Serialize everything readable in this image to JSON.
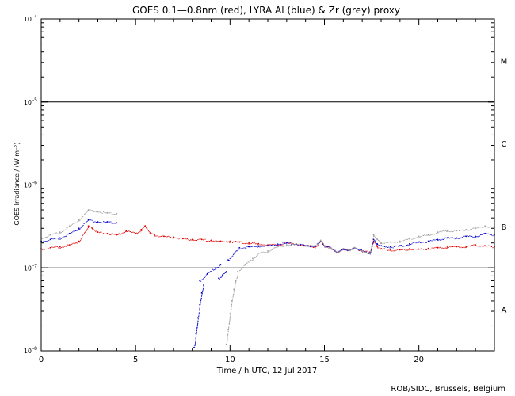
{
  "chart_data": {
    "type": "line",
    "title": "GOES 0.1—0.8nm (red), LYRA Al (blue) & Zr (grey) proxy",
    "xlabel": "Time / h UTC, 12 Jul 2017",
    "ylabel": "GOES Irradiance / (W m⁻²)",
    "credit": "ROB/SIDC, Brussels, Belgium",
    "xlim": [
      0,
      24
    ],
    "ylim": [
      1e-08,
      0.0001
    ],
    "yscale": "log",
    "x_ticks": [
      0,
      5,
      10,
      15,
      20
    ],
    "y_tick_labels": [
      {
        "value": 1e-08,
        "base": "10",
        "exp": "-8"
      },
      {
        "value": 1e-07,
        "base": "10",
        "exp": "-7"
      },
      {
        "value": 1e-06,
        "base": "10",
        "exp": "-6"
      },
      {
        "value": 1e-05,
        "base": "10",
        "exp": "-5"
      },
      {
        "value": 0.0001,
        "base": "10",
        "exp": "-4"
      }
    ],
    "class_lines": [
      1e-07,
      1e-06,
      1e-05
    ],
    "class_labels": [
      {
        "label": "A",
        "value": 3.16e-08
      },
      {
        "label": "B",
        "value": 3.16e-07
      },
      {
        "label": "C",
        "value": 3.16e-06
      },
      {
        "label": "M",
        "value": 3.16e-05
      }
    ],
    "colors": {
      "red": "#e00000",
      "blue": "#0000c8",
      "grey": "#a0a0a0"
    },
    "series": [
      {
        "color": "red",
        "x": [
          0,
          0.5,
          1,
          1.5,
          2,
          2.5,
          2.7,
          3,
          3.5,
          4,
          4.5,
          5,
          5.3,
          5.5,
          5.8,
          6,
          6.5,
          7,
          7.5,
          8,
          8.5,
          9,
          9.5,
          10,
          10.5,
          11,
          11.5,
          12,
          12.5,
          13,
          13.5,
          14,
          14.5,
          14.8,
          15,
          15.3,
          15.7,
          16,
          16.3,
          16.6,
          17,
          17.4,
          17.6,
          17.8,
          18,
          18.5,
          19,
          19.5,
          20,
          20.5,
          21,
          21.5,
          22,
          22.5,
          23,
          23.5,
          24
        ],
        "y": [
          1.7e-07,
          1.75e-07,
          1.8e-07,
          1.9e-07,
          2.1e-07,
          3.2e-07,
          3e-07,
          2.7e-07,
          2.6e-07,
          2.5e-07,
          2.8e-07,
          2.6e-07,
          2.9e-07,
          3.2e-07,
          2.6e-07,
          2.5e-07,
          2.4e-07,
          2.35e-07,
          2.25e-07,
          2.2e-07,
          2.2e-07,
          2.15e-07,
          2.1e-07,
          2.1e-07,
          2.05e-07,
          2e-07,
          1.95e-07,
          1.9e-07,
          1.9e-07,
          2e-07,
          1.95e-07,
          1.85e-07,
          1.8e-07,
          2.1e-07,
          1.85e-07,
          1.75e-07,
          1.55e-07,
          1.7e-07,
          1.65e-07,
          1.75e-07,
          1.6e-07,
          1.55e-07,
          2.1e-07,
          1.8e-07,
          1.7e-07,
          1.65e-07,
          1.65e-07,
          1.7e-07,
          1.68e-07,
          1.72e-07,
          1.75e-07,
          1.78e-07,
          1.8e-07,
          1.8e-07,
          1.9e-07,
          1.85e-07,
          1.8e-07
        ]
      },
      {
        "color": "blue",
        "x": [
          0,
          0.5,
          1,
          1.5,
          2,
          2.5,
          3,
          3.5,
          4
        ],
        "y": [
          2.1e-07,
          2.2e-07,
          2.3e-07,
          2.6e-07,
          3e-07,
          3.8e-07,
          3.6e-07,
          3.6e-07,
          3.5e-07
        ]
      },
      {
        "color": "blue",
        "x": [
          8.1,
          8.2,
          8.3,
          8.4,
          8.5,
          8.6
        ],
        "y": [
          1.1e-08,
          1.6e-08,
          2.5e-08,
          3.6e-08,
          5e-08,
          6.2e-08
        ]
      },
      {
        "color": "blue",
        "x": [
          8.4,
          8.8,
          9.2,
          9.5
        ],
        "y": [
          7e-08,
          8.5e-08,
          1e-07,
          1.1e-07
        ]
      },
      {
        "color": "blue",
        "x": [
          9.4,
          9.6,
          9.8
        ],
        "y": [
          7.5e-08,
          8.2e-08,
          9e-08
        ]
      },
      {
        "color": "blue",
        "x": [
          9.9,
          10.2,
          10.5,
          11,
          11.5,
          12,
          12.5,
          13,
          13.5,
          14,
          14.5,
          14.8,
          15,
          15.3,
          15.7,
          16,
          16.3,
          16.6,
          17,
          17.4,
          17.6,
          17.8,
          18,
          18.5,
          19,
          19.5,
          20,
          20.5,
          21,
          21.5,
          22,
          22.5,
          23,
          23.5,
          24
        ],
        "y": [
          1.25e-07,
          1.5e-07,
          1.75e-07,
          1.8e-07,
          1.85e-07,
          1.85e-07,
          1.95e-07,
          2e-07,
          1.95e-07,
          1.85e-07,
          1.85e-07,
          2.1e-07,
          1.85e-07,
          1.75e-07,
          1.55e-07,
          1.7e-07,
          1.65e-07,
          1.75e-07,
          1.6e-07,
          1.5e-07,
          2.2e-07,
          1.95e-07,
          1.85e-07,
          1.8e-07,
          1.85e-07,
          1.95e-07,
          2.05e-07,
          2.1e-07,
          2.2e-07,
          2.3e-07,
          2.3e-07,
          2.4e-07,
          2.4e-07,
          2.6e-07,
          2.5e-07
        ]
      },
      {
        "color": "grey",
        "x": [
          0,
          0.5,
          1,
          1.5,
          2,
          2.5,
          3,
          3.5,
          4
        ],
        "y": [
          2.3e-07,
          2.5e-07,
          2.7e-07,
          3.2e-07,
          3.8e-07,
          5e-07,
          4.8e-07,
          4.6e-07,
          4.5e-07
        ]
      },
      {
        "color": "grey",
        "x": [
          9.8,
          9.9,
          10,
          10.1,
          10.2,
          10.3,
          10.4
        ],
        "y": [
          1.2e-08,
          1.8e-08,
          2.8e-08,
          4e-08,
          5.5e-08,
          7e-08,
          8e-08
        ]
      },
      {
        "color": "grey",
        "x": [
          10.4,
          10.8,
          11.2,
          11.5,
          12,
          12.5,
          13,
          13.5,
          14,
          14.5,
          14.8,
          15,
          15.3,
          15.7,
          16,
          16.3,
          16.6,
          17,
          17.4,
          17.6,
          17.8,
          18,
          18.5,
          19,
          19.5,
          20,
          20.5,
          21,
          21.5,
          22,
          22.5,
          23,
          23.5,
          24
        ],
        "y": [
          9e-08,
          1.1e-07,
          1.3e-07,
          1.5e-07,
          1.6e-07,
          1.8e-07,
          1.9e-07,
          1.95e-07,
          1.85e-07,
          1.85e-07,
          2.15e-07,
          1.85e-07,
          1.75e-07,
          1.55e-07,
          1.7e-07,
          1.65e-07,
          1.75e-07,
          1.6e-07,
          1.5e-07,
          2.5e-07,
          2.2e-07,
          2e-07,
          2.05e-07,
          2.1e-07,
          2.25e-07,
          2.4e-07,
          2.5e-07,
          2.7e-07,
          2.8e-07,
          2.8e-07,
          2.9e-07,
          3e-07,
          3.2e-07,
          3.1e-07
        ]
      }
    ]
  }
}
